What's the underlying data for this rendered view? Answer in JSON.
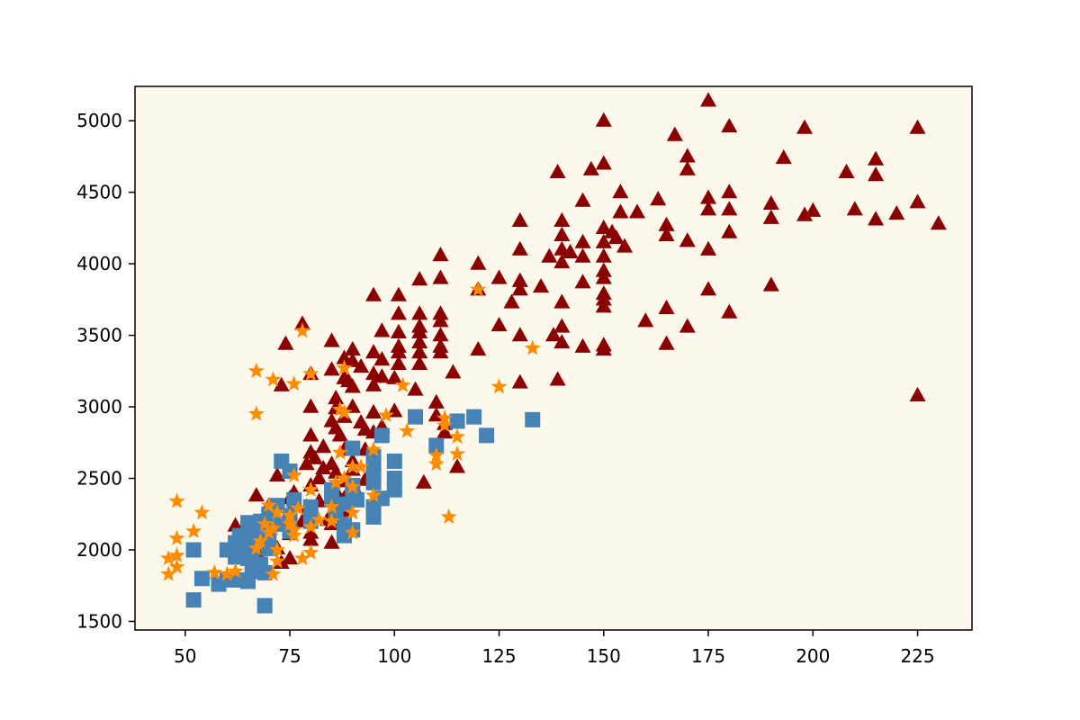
{
  "chart_data": {
    "type": "scatter",
    "title": "",
    "xlabel": "",
    "ylabel": "",
    "xlim": [
      38,
      238
    ],
    "ylim": [
      1440,
      5240
    ],
    "x_ticks": [
      50,
      75,
      100,
      125,
      150,
      175,
      200,
      225
    ],
    "y_ticks": [
      1500,
      2000,
      2500,
      3000,
      3500,
      4000,
      4500,
      5000
    ],
    "grid": false,
    "legend": "none",
    "background": "#fdf8ec",
    "series": [
      {
        "marker": "triangle",
        "color": "#8b0000",
        "points": [
          [
            175,
            5140
          ],
          [
            150,
            5000
          ],
          [
            180,
            4960
          ],
          [
            198,
            4950
          ],
          [
            225,
            4950
          ],
          [
            167,
            4900
          ],
          [
            193,
            4740
          ],
          [
            170,
            4750
          ],
          [
            215,
            4730
          ],
          [
            150,
            4700
          ],
          [
            170,
            4660
          ],
          [
            147,
            4660
          ],
          [
            139,
            4640
          ],
          [
            208,
            4640
          ],
          [
            215,
            4620
          ],
          [
            154,
            4500
          ],
          [
            180,
            4500
          ],
          [
            175,
            4460
          ],
          [
            163,
            4450
          ],
          [
            145,
            4440
          ],
          [
            190,
            4420
          ],
          [
            225,
            4430
          ],
          [
            175,
            4380
          ],
          [
            180,
            4380
          ],
          [
            210,
            4380
          ],
          [
            200,
            4370
          ],
          [
            154,
            4360
          ],
          [
            158,
            4360
          ],
          [
            198,
            4340
          ],
          [
            220,
            4350
          ],
          [
            215,
            4310
          ],
          [
            190,
            4320
          ],
          [
            230,
            4280
          ],
          [
            130,
            4300
          ],
          [
            140,
            4300
          ],
          [
            165,
            4270
          ],
          [
            150,
            4250
          ],
          [
            152,
            4220
          ],
          [
            180,
            4220
          ],
          [
            165,
            4200
          ],
          [
            140,
            4200
          ],
          [
            153,
            4180
          ],
          [
            145,
            4150
          ],
          [
            150,
            4150
          ],
          [
            170,
            4160
          ],
          [
            140,
            4100
          ],
          [
            155,
            4120
          ],
          [
            130,
            4100
          ],
          [
            175,
            4100
          ],
          [
            142,
            4080
          ],
          [
            111,
            4060
          ],
          [
            137,
            4050
          ],
          [
            145,
            4050
          ],
          [
            150,
            4050
          ],
          [
            140,
            4010
          ],
          [
            120,
            4000
          ],
          [
            150,
            3950
          ],
          [
            111,
            3900
          ],
          [
            106,
            3890
          ],
          [
            125,
            3900
          ],
          [
            130,
            3880
          ],
          [
            150,
            3900
          ],
          [
            145,
            3870
          ],
          [
            135,
            3840
          ],
          [
            130,
            3820
          ],
          [
            120,
            3820
          ],
          [
            175,
            3820
          ],
          [
            190,
            3850
          ],
          [
            95,
            3780
          ],
          [
            101,
            3780
          ],
          [
            150,
            3790
          ],
          [
            128,
            3730
          ],
          [
            140,
            3730
          ],
          [
            150,
            3750
          ],
          [
            180,
            3660
          ],
          [
            165,
            3690
          ],
          [
            101,
            3650
          ],
          [
            106,
            3650
          ],
          [
            111,
            3650
          ],
          [
            150,
            3700
          ],
          [
            111,
            3600
          ],
          [
            160,
            3600
          ],
          [
            78,
            3580
          ],
          [
            106,
            3560
          ],
          [
            125,
            3570
          ],
          [
            140,
            3560
          ],
          [
            170,
            3560
          ],
          [
            97,
            3530
          ],
          [
            101,
            3520
          ],
          [
            106,
            3520
          ],
          [
            111,
            3500
          ],
          [
            130,
            3500
          ],
          [
            138,
            3500
          ],
          [
            85,
            3460
          ],
          [
            74,
            3440
          ],
          [
            140,
            3450
          ],
          [
            165,
            3440
          ],
          [
            106,
            3450
          ],
          [
            101,
            3420
          ],
          [
            111,
            3420
          ],
          [
            120,
            3400
          ],
          [
            145,
            3420
          ],
          [
            150,
            3430
          ],
          [
            150,
            3400
          ],
          [
            90,
            3400
          ],
          [
            95,
            3380
          ],
          [
            101,
            3380
          ],
          [
            106,
            3380
          ],
          [
            111,
            3380
          ],
          [
            88,
            3340
          ],
          [
            97,
            3330
          ],
          [
            90,
            3320
          ],
          [
            101,
            3300
          ],
          [
            106,
            3300
          ],
          [
            85,
            3260
          ],
          [
            92,
            3280
          ],
          [
            114,
            3240
          ],
          [
            95,
            3230
          ],
          [
            97,
            3210
          ],
          [
            80,
            3230
          ],
          [
            88,
            3200
          ],
          [
            100,
            3200
          ],
          [
            89,
            3180
          ],
          [
            139,
            3190
          ],
          [
            95,
            3150
          ],
          [
            130,
            3170
          ],
          [
            90,
            3140
          ],
          [
            73,
            3150
          ],
          [
            105,
            3120
          ],
          [
            86,
            3060
          ],
          [
            110,
            3030
          ],
          [
            225,
            3080
          ],
          [
            80,
            3000
          ],
          [
            90,
            3000
          ],
          [
            86,
            2990
          ],
          [
            95,
            2960
          ],
          [
            100,
            2970
          ],
          [
            110,
            2940
          ],
          [
            88,
            2930
          ],
          [
            85,
            2900
          ],
          [
            92,
            2890
          ],
          [
            112,
            2880
          ],
          [
            86,
            2850
          ],
          [
            93,
            2840
          ],
          [
            97,
            2860
          ],
          [
            80,
            2800
          ],
          [
            87,
            2800
          ],
          [
            95,
            2820
          ],
          [
            112,
            2820
          ],
          [
            83,
            2720
          ],
          [
            80,
            2680
          ],
          [
            88,
            2700
          ],
          [
            93,
            2700
          ],
          [
            81,
            2640
          ],
          [
            79,
            2600
          ],
          [
            85,
            2600
          ],
          [
            90,
            2620
          ],
          [
            95,
            2600
          ],
          [
            83,
            2570
          ],
          [
            86,
            2540
          ],
          [
            90,
            2560
          ],
          [
            115,
            2580
          ],
          [
            72,
            2520
          ],
          [
            82,
            2500
          ],
          [
            88,
            2480
          ],
          [
            93,
            2490
          ],
          [
            100,
            2450
          ],
          [
            107,
            2470
          ],
          [
            80,
            2450
          ],
          [
            76,
            2400
          ],
          [
            86,
            2410
          ],
          [
            91,
            2400
          ],
          [
            67,
            2380
          ],
          [
            75,
            2360
          ],
          [
            82,
            2340
          ],
          [
            88,
            2360
          ],
          [
            70,
            2310
          ],
          [
            79,
            2300
          ],
          [
            86,
            2320
          ],
          [
            75,
            2260
          ],
          [
            88,
            2270
          ],
          [
            71,
            2220
          ],
          [
            78,
            2200
          ],
          [
            84,
            2210
          ],
          [
            62,
            2170
          ],
          [
            66,
            2160
          ],
          [
            85,
            2180
          ],
          [
            80,
            2120
          ],
          [
            75,
            2110
          ],
          [
            68,
            2060
          ],
          [
            80,
            2070
          ],
          [
            85,
            2050
          ],
          [
            72,
            2010
          ],
          [
            67,
            1990
          ],
          [
            75,
            1940
          ],
          [
            73,
            1910
          ]
        ]
      },
      {
        "marker": "square",
        "color": "#4682b4",
        "points": [
          [
            105,
            2930
          ],
          [
            119,
            2930
          ],
          [
            133,
            2910
          ],
          [
            115,
            2900
          ],
          [
            122,
            2800
          ],
          [
            97,
            2800
          ],
          [
            110,
            2730
          ],
          [
            90,
            2710
          ],
          [
            73,
            2620
          ],
          [
            95,
            2650
          ],
          [
            100,
            2620
          ],
          [
            75,
            2550
          ],
          [
            95,
            2560
          ],
          [
            100,
            2500
          ],
          [
            90,
            2450
          ],
          [
            95,
            2470
          ],
          [
            85,
            2420
          ],
          [
            90,
            2400
          ],
          [
            100,
            2420
          ],
          [
            76,
            2350
          ],
          [
            85,
            2350
          ],
          [
            91,
            2350
          ],
          [
            97,
            2360
          ],
          [
            72,
            2310
          ],
          [
            80,
            2300
          ],
          [
            88,
            2320
          ],
          [
            95,
            2300
          ],
          [
            70,
            2250
          ],
          [
            75,
            2240
          ],
          [
            86,
            2250
          ],
          [
            95,
            2230
          ],
          [
            65,
            2190
          ],
          [
            68,
            2200
          ],
          [
            72,
            2180
          ],
          [
            80,
            2200
          ],
          [
            88,
            2180
          ],
          [
            66,
            2140
          ],
          [
            70,
            2150
          ],
          [
            75,
            2130
          ],
          [
            90,
            2140
          ],
          [
            63,
            2100
          ],
          [
            67,
            2100
          ],
          [
            70,
            2080
          ],
          [
            88,
            2100
          ],
          [
            62,
            2050
          ],
          [
            65,
            2060
          ],
          [
            68,
            2050
          ],
          [
            70,
            2010
          ],
          [
            52,
            2000
          ],
          [
            60,
            2000
          ],
          [
            63,
            1980
          ],
          [
            66,
            1980
          ],
          [
            62,
            1950
          ],
          [
            65,
            1940
          ],
          [
            68,
            1900
          ],
          [
            66,
            1850
          ],
          [
            69,
            1840
          ],
          [
            54,
            1800
          ],
          [
            60,
            1790
          ],
          [
            63,
            1790
          ],
          [
            65,
            1780
          ],
          [
            58,
            1760
          ],
          [
            52,
            1650
          ],
          [
            69,
            1610
          ]
        ]
      },
      {
        "marker": "star",
        "color": "#ff8c00",
        "points": [
          [
            120,
            3820
          ],
          [
            78,
            3530
          ],
          [
            133,
            3410
          ],
          [
            88,
            3270
          ],
          [
            67,
            3250
          ],
          [
            80,
            3230
          ],
          [
            71,
            3190
          ],
          [
            76,
            3160
          ],
          [
            102,
            3150
          ],
          [
            125,
            3140
          ],
          [
            67,
            2950
          ],
          [
            87,
            2980
          ],
          [
            88,
            2960
          ],
          [
            98,
            2940
          ],
          [
            112,
            2920
          ],
          [
            112,
            2870
          ],
          [
            103,
            2830
          ],
          [
            115,
            2790
          ],
          [
            95,
            2700
          ],
          [
            87,
            2680
          ],
          [
            110,
            2660
          ],
          [
            115,
            2670
          ],
          [
            110,
            2600
          ],
          [
            90,
            2580
          ],
          [
            92,
            2580
          ],
          [
            76,
            2520
          ],
          [
            88,
            2500
          ],
          [
            86,
            2470
          ],
          [
            90,
            2440
          ],
          [
            80,
            2420
          ],
          [
            95,
            2380
          ],
          [
            48,
            2340
          ],
          [
            70,
            2310
          ],
          [
            85,
            2300
          ],
          [
            77,
            2290
          ],
          [
            54,
            2260
          ],
          [
            72,
            2260
          ],
          [
            90,
            2260
          ],
          [
            113,
            2230
          ],
          [
            75,
            2240
          ],
          [
            82,
            2210
          ],
          [
            85,
            2200
          ],
          [
            69,
            2180
          ],
          [
            75,
            2180
          ],
          [
            80,
            2160
          ],
          [
            71,
            2150
          ],
          [
            76,
            2140
          ],
          [
            52,
            2130
          ],
          [
            70,
            2120
          ],
          [
            90,
            2120
          ],
          [
            76,
            2100
          ],
          [
            48,
            2080
          ],
          [
            68,
            2060
          ],
          [
            67,
            2010
          ],
          [
            72,
            2000
          ],
          [
            80,
            1980
          ],
          [
            48,
            1960
          ],
          [
            46,
            1940
          ],
          [
            78,
            1940
          ],
          [
            72,
            1920
          ],
          [
            48,
            1880
          ],
          [
            62,
            1850
          ],
          [
            57,
            1840
          ],
          [
            46,
            1830
          ],
          [
            60,
            1830
          ],
          [
            71,
            1830
          ]
        ]
      }
    ]
  }
}
